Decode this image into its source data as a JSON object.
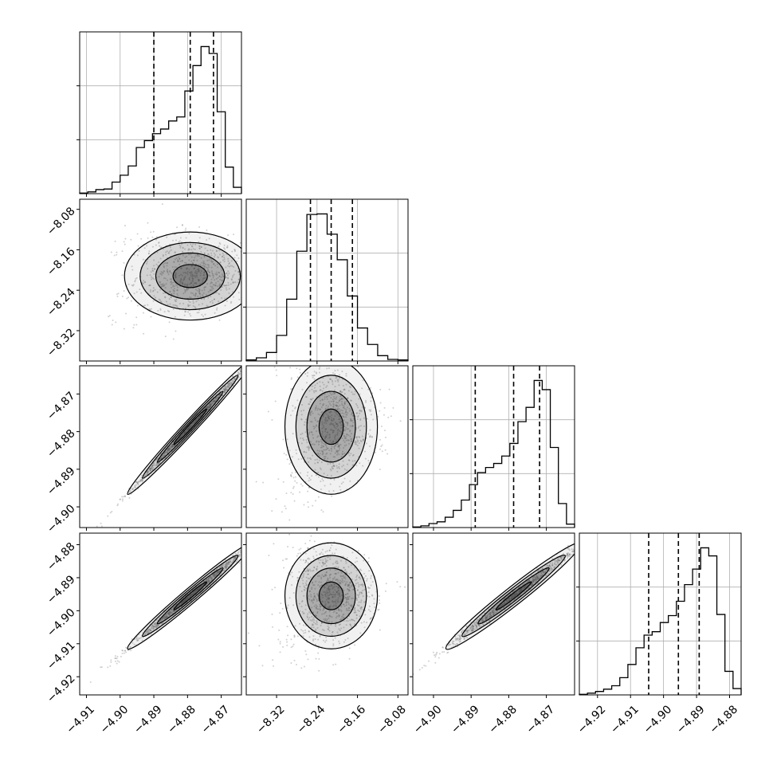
{
  "chart_data": {
    "type": "corner",
    "num_params": 4,
    "quantiles": [
      0.16,
      0.5,
      0.84
    ],
    "grid": true,
    "parameters": [
      {
        "range": [
          -4.912,
          -4.864
        ],
        "ticks": [
          -4.91,
          -4.9,
          -4.89,
          -4.88,
          -4.87
        ],
        "tick_labels": [
          "−4.91",
          "−4.90",
          "−4.89",
          "−4.88",
          "−4.87"
        ],
        "quantile_values": [
          -4.89,
          -4.8792,
          -4.8723
        ],
        "hist_counts": [
          1,
          3,
          7,
          8,
          20,
          32,
          48,
          80,
          92,
          104,
          112,
          126,
          133,
          178,
          222,
          255,
          243,
          142,
          46,
          11
        ]
      },
      {
        "range": [
          -8.38,
          -8.06
        ],
        "ticks": [
          -8.32,
          -8.24,
          -8.16,
          -8.08
        ],
        "tick_labels": [
          "−8.32",
          "−8.24",
          "−8.16",
          "−8.08"
        ],
        "quantile_values": [
          -8.253,
          -8.212,
          -8.17
        ],
        "hist_counts": [
          2,
          6,
          16,
          48,
          116,
          206,
          275,
          276,
          238,
          190,
          122,
          62,
          31,
          10,
          3,
          2
        ]
      },
      {
        "range": [
          -4.9055,
          -4.8625
        ],
        "ticks": [
          -4.9,
          -4.89,
          -4.88,
          -4.87
        ],
        "tick_labels": [
          "−4.90",
          "−4.89",
          "−4.88",
          "−4.87"
        ],
        "quantile_values": [
          -4.8889,
          -4.8787,
          -4.8718
        ],
        "hist_counts": [
          1,
          3,
          7,
          10,
          18,
          30,
          48,
          75,
          96,
          105,
          112,
          125,
          147,
          185,
          210,
          257,
          241,
          140,
          42,
          6
        ]
      },
      {
        "range": [
          -4.9255,
          -4.8765
        ],
        "ticks": [
          -4.92,
          -4.91,
          -4.9,
          -4.89,
          -4.88
        ],
        "tick_labels": [
          "−4.92",
          "−4.91",
          "−4.90",
          "−4.89",
          "−4.88"
        ],
        "quantile_values": [
          -4.9045,
          -4.8955,
          -4.8892
        ],
        "hist_counts": [
          1,
          3,
          6,
          10,
          16,
          30,
          53,
          82,
          104,
          110,
          126,
          138,
          163,
          192,
          219,
          256,
          242,
          140,
          41,
          11
        ]
      }
    ],
    "pairs": [
      {
        "row": 1,
        "col": 0,
        "x_param": 0,
        "y_param": 1,
        "rho": 0.0,
        "banana": 0.6
      },
      {
        "row": 2,
        "col": 0,
        "x_param": 0,
        "y_param": 2,
        "rho": 0.997,
        "banana": 0.0
      },
      {
        "row": 2,
        "col": 1,
        "x_param": 1,
        "y_param": 2,
        "rho": 0.0,
        "banana": 0.7
      },
      {
        "row": 3,
        "col": 0,
        "x_param": 0,
        "y_param": 3,
        "rho": 0.995,
        "banana": 0.0
      },
      {
        "row": 3,
        "col": 1,
        "x_param": 1,
        "y_param": 3,
        "rho": 0.0,
        "banana": 0.7
      },
      {
        "row": 3,
        "col": 2,
        "x_param": 2,
        "y_param": 3,
        "rho": 0.993,
        "banana": 0.0
      }
    ]
  }
}
